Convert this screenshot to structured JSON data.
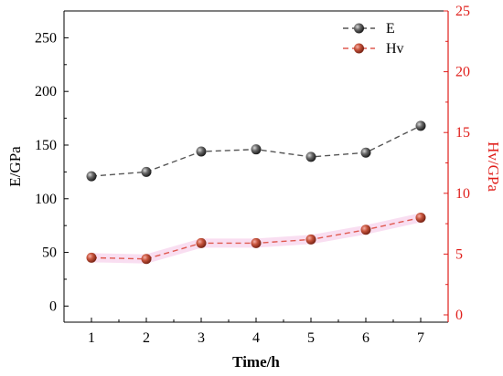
{
  "chart_data": {
    "type": "line",
    "x": [
      1,
      2,
      3,
      4,
      5,
      6,
      7
    ],
    "xlabel": "Time/h",
    "xlim": [
      0.5,
      7.5
    ],
    "xticks": [
      1,
      2,
      3,
      4,
      5,
      6,
      7
    ],
    "left_axis": {
      "label": "E/GPa",
      "ylim": [
        -15,
        275
      ],
      "ticks": [
        0,
        50,
        100,
        150,
        200,
        250
      ],
      "color": "#000000"
    },
    "right_axis": {
      "label": "Hv/GPa",
      "ylim": [
        -0.6,
        25
      ],
      "ticks": [
        0,
        5,
        10,
        15,
        20,
        25
      ],
      "color": "#e0201c"
    },
    "series": [
      {
        "name": "E",
        "axis": "left",
        "values": [
          121,
          125,
          144,
          146,
          139,
          143,
          168
        ],
        "color": "#555555"
      },
      {
        "name": "Hv",
        "axis": "right",
        "values": [
          4.7,
          4.6,
          5.9,
          5.9,
          6.2,
          7.0,
          8.0
        ],
        "color": "#e05a50"
      }
    ],
    "legend": "top-right",
    "grid": false
  }
}
